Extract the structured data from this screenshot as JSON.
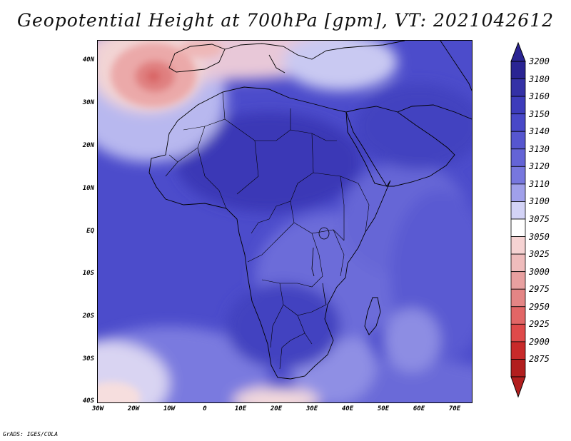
{
  "title": "Geopotential Height at 700hPa [gpm], VT: 2021042612",
  "credit": "GrADS: IGES/COLA",
  "map": {
    "lat_labels": [
      "40N",
      "30N",
      "20N",
      "10N",
      "EQ",
      "10S",
      "20S",
      "30S",
      "40S"
    ],
    "lon_labels": [
      "30W",
      "20W",
      "10W",
      "0",
      "10E",
      "20E",
      "30E",
      "40E",
      "50E",
      "60E",
      "70E"
    ],
    "lat_range": [
      -40,
      45
    ],
    "lon_range": [
      -30,
      75
    ]
  },
  "colorbar": {
    "levels": [
      "3200",
      "3180",
      "3160",
      "3150",
      "3140",
      "3130",
      "3120",
      "3110",
      "3100",
      "3075",
      "3050",
      "3025",
      "3000",
      "2975",
      "2950",
      "2925",
      "2900",
      "2875"
    ],
    "colors": [
      "#2a2493",
      "#3431a6",
      "#3d3cbb",
      "#4848c8",
      "#5656cf",
      "#6464d6",
      "#7777de",
      "#a0a0ea",
      "#d3d3f6",
      "#ffffff",
      "#f6d3d3",
      "#efbcbc",
      "#e8a0a0",
      "#e48585",
      "#e26666",
      "#df4a4a",
      "#c82a2a",
      "#b21e1e"
    ]
  }
}
